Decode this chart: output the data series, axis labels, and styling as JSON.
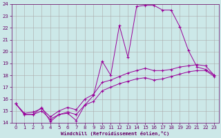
{
  "xlabel": "Windchill (Refroidissement éolien,°C)",
  "bg_color": "#cce8e8",
  "line_color": "#990099",
  "grid_color": "#aaaaaa",
  "xlim": [
    -0.5,
    23.5
  ],
  "ylim": [
    14,
    24
  ],
  "yticks": [
    14,
    15,
    16,
    17,
    18,
    19,
    20,
    21,
    22,
    23,
    24
  ],
  "xticks": [
    0,
    1,
    2,
    3,
    4,
    5,
    6,
    7,
    8,
    9,
    10,
    11,
    12,
    13,
    14,
    15,
    16,
    17,
    18,
    19,
    20,
    21,
    22,
    23
  ],
  "line1_x": [
    0,
    1,
    2,
    3,
    4,
    5,
    6,
    7,
    8,
    9,
    10,
    11,
    12,
    13,
    14,
    15,
    16,
    17,
    18,
    19,
    20,
    21,
    22,
    23
  ],
  "line1_y": [
    15.6,
    14.7,
    14.7,
    15.3,
    14.1,
    14.7,
    14.8,
    14.2,
    15.5,
    16.3,
    19.2,
    18.0,
    22.2,
    19.5,
    23.8,
    23.9,
    23.9,
    23.5,
    23.5,
    22.1,
    20.1,
    18.7,
    18.5,
    18.0
  ],
  "line2_x": [
    0,
    1,
    2,
    3,
    4,
    5,
    6,
    7,
    8,
    9,
    10,
    11,
    12,
    13,
    14,
    15,
    16,
    17,
    18,
    19,
    20,
    21,
    22,
    23
  ],
  "line2_y": [
    15.6,
    14.8,
    14.9,
    15.2,
    14.5,
    15.0,
    15.3,
    15.1,
    16.0,
    16.4,
    17.4,
    17.6,
    17.9,
    18.2,
    18.4,
    18.6,
    18.4,
    18.4,
    18.5,
    18.7,
    18.8,
    18.9,
    18.8,
    18.0
  ],
  "line3_x": [
    0,
    1,
    2,
    3,
    4,
    5,
    6,
    7,
    8,
    9,
    10,
    11,
    12,
    13,
    14,
    15,
    16,
    17,
    18,
    19,
    20,
    21,
    22,
    23
  ],
  "line3_y": [
    15.6,
    14.7,
    14.7,
    15.0,
    14.3,
    14.7,
    14.9,
    14.7,
    15.5,
    15.8,
    16.7,
    17.0,
    17.3,
    17.5,
    17.7,
    17.8,
    17.6,
    17.7,
    17.9,
    18.1,
    18.3,
    18.4,
    18.4,
    17.9
  ]
}
